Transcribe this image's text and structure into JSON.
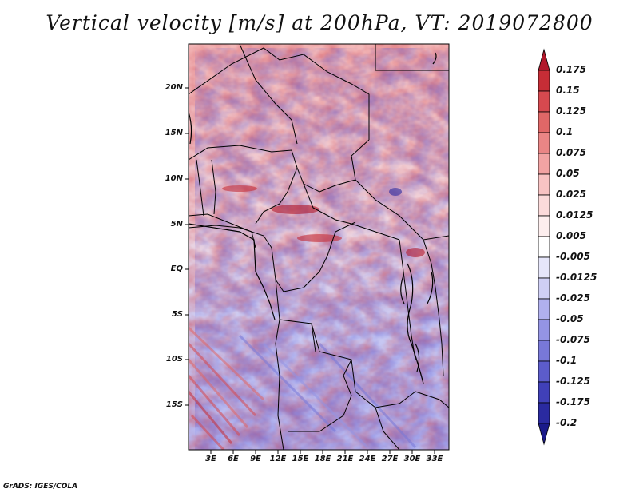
{
  "title": "Vertical velocity [m/s] at 200hPa, VT: 2019072800",
  "credit": "GrADS: IGES/COLA",
  "lat_labels": [
    "20N",
    "15N",
    "10N",
    "5N",
    "EQ",
    "5S",
    "10S",
    "15S"
  ],
  "lon_labels": [
    "3E",
    "6E",
    "9E",
    "12E",
    "15E",
    "18E",
    "21E",
    "24E",
    "27E",
    "30E",
    "33E"
  ],
  "colorbar": {
    "labels": [
      "0.175",
      "0.15",
      "0.125",
      "0.1",
      "0.075",
      "0.05",
      "0.025",
      "0.0125",
      "0.005",
      "-0.005",
      "-0.0125",
      "-0.025",
      "-0.05",
      "-0.075",
      "-0.1",
      "-0.125",
      "-0.175",
      "-0.2"
    ],
    "colors": [
      "#b2182b",
      "#c62d36",
      "#d6494f",
      "#e06767",
      "#ea8585",
      "#f2a3a3",
      "#f8c3c3",
      "#fbdada",
      "#fdeeee",
      "#ffffff",
      "#e6e6fa",
      "#cfcff5",
      "#b0b0ee",
      "#9494e4",
      "#7878d8",
      "#5c5ccb",
      "#4040b8",
      "#2a2aa0",
      "#1a1a8a"
    ]
  }
}
